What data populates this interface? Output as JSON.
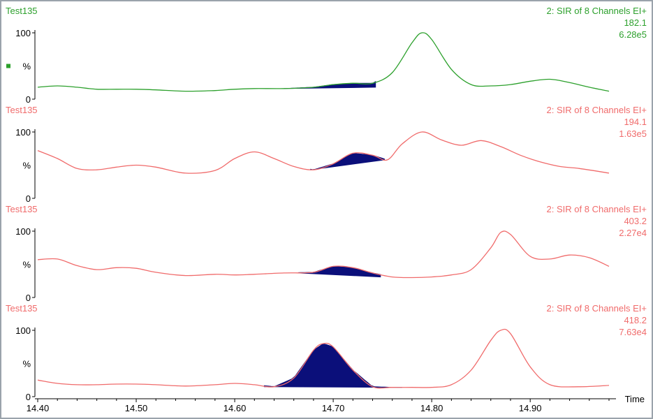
{
  "chart_data": {
    "type": "line",
    "x_axis": {
      "label": "Time",
      "range": [
        14.4,
        14.98
      ],
      "ticks": [
        14.4,
        14.5,
        14.6,
        14.7,
        14.8,
        14.9
      ],
      "tick_labels": [
        "14.40",
        "14.50",
        "14.60",
        "14.70",
        "14.80",
        "14.90"
      ]
    },
    "y_axis": {
      "range": [
        0,
        100
      ],
      "tick_labels": [
        "100",
        "%",
        "0"
      ]
    },
    "panels": [
      {
        "sample": "Test135",
        "function": "2: SIR of 8 Channels EI+",
        "mass": "182.1",
        "intensity": "6.28e5",
        "color": "#2ca02c",
        "marker": true,
        "x": [
          14.4,
          14.42,
          14.44,
          14.46,
          14.48,
          14.5,
          14.52,
          14.55,
          14.58,
          14.6,
          14.62,
          14.65,
          14.68,
          14.7,
          14.72,
          14.74,
          14.76,
          14.78,
          14.79,
          14.8,
          14.82,
          14.84,
          14.86,
          14.88,
          14.9,
          14.92,
          14.94,
          14.96,
          14.98
        ],
        "y": [
          18,
          20,
          18,
          15,
          15,
          15,
          14,
          12,
          13,
          15,
          16,
          16,
          18,
          22,
          24,
          24,
          40,
          85,
          100,
          90,
          45,
          22,
          20,
          22,
          27,
          30,
          25,
          18,
          12
        ],
        "peak": {
          "x_start": 14.65,
          "x_end": 14.743,
          "baseline": [
            16,
            18
          ]
        }
      },
      {
        "sample": "Test135",
        "function": "2: SIR of 8 Channels EI+",
        "mass": "194.1",
        "intensity": "1.63e5",
        "color": "#f06b6b",
        "marker": false,
        "x": [
          14.4,
          14.42,
          14.44,
          14.46,
          14.48,
          14.5,
          14.52,
          14.55,
          14.58,
          14.6,
          14.62,
          14.64,
          14.66,
          14.68,
          14.7,
          14.72,
          14.74,
          14.755,
          14.77,
          14.79,
          14.81,
          14.83,
          14.85,
          14.87,
          14.89,
          14.91,
          14.93,
          14.95,
          14.98
        ],
        "y": [
          72,
          60,
          45,
          43,
          47,
          50,
          47,
          38,
          42,
          60,
          70,
          60,
          48,
          43,
          52,
          68,
          65,
          58,
          82,
          100,
          88,
          80,
          87,
          78,
          65,
          55,
          48,
          45,
          38
        ],
        "peak": {
          "x_start": 14.677,
          "x_end": 14.752,
          "baseline": [
            43,
            58
          ]
        }
      },
      {
        "sample": "Test135",
        "function": "2: SIR of 8 Channels EI+",
        "mass": "403.2",
        "intensity": "2.27e4",
        "color": "#f06b6b",
        "marker": false,
        "x": [
          14.4,
          14.42,
          14.44,
          14.46,
          14.48,
          14.5,
          14.52,
          14.55,
          14.58,
          14.6,
          14.62,
          14.65,
          14.68,
          14.7,
          14.72,
          14.74,
          14.76,
          14.78,
          14.8,
          14.82,
          14.84,
          14.86,
          14.87,
          14.88,
          14.9,
          14.92,
          14.94,
          14.96,
          14.98
        ],
        "y": [
          57,
          58,
          48,
          42,
          45,
          44,
          38,
          33,
          35,
          34,
          35,
          37,
          38,
          47,
          45,
          37,
          31,
          30,
          31,
          34,
          42,
          75,
          98,
          95,
          62,
          58,
          64,
          60,
          47
        ],
        "peak": {
          "x_start": 14.665,
          "x_end": 14.748,
          "baseline": [
            37,
            31
          ]
        }
      },
      {
        "sample": "Test135",
        "function": "2: SIR of 8 Channels EI+",
        "mass": "418.2",
        "intensity": "7.63e4",
        "color": "#f06b6b",
        "marker": false,
        "x": [
          14.4,
          14.42,
          14.44,
          14.46,
          14.48,
          14.5,
          14.52,
          14.55,
          14.58,
          14.6,
          14.62,
          14.64,
          14.66,
          14.68,
          14.69,
          14.7,
          14.72,
          14.74,
          14.76,
          14.78,
          14.8,
          14.82,
          14.84,
          14.86,
          14.87,
          14.88,
          14.9,
          14.92,
          14.95,
          14.98
        ],
        "y": [
          25,
          20,
          18,
          18,
          19,
          19,
          18,
          16,
          18,
          20,
          18,
          15,
          28,
          70,
          80,
          75,
          40,
          15,
          14,
          14,
          14,
          18,
          40,
          85,
          100,
          95,
          45,
          18,
          15,
          17
        ],
        "peak": {
          "x_start": 14.63,
          "x_end": 14.77,
          "baseline": [
            15,
            14
          ]
        }
      }
    ]
  }
}
